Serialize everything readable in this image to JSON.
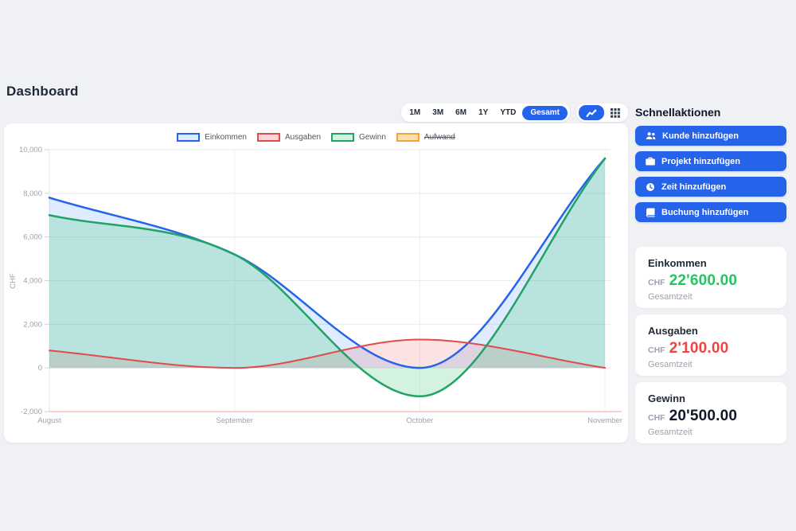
{
  "page": {
    "title": "Dashboard"
  },
  "toolbar": {
    "ranges": [
      {
        "label": "1M",
        "active": false
      },
      {
        "label": "3M",
        "active": false
      },
      {
        "label": "6M",
        "active": false
      },
      {
        "label": "1Y",
        "active": false
      },
      {
        "label": "YTD",
        "active": false
      },
      {
        "label": "Gesamt",
        "active": true
      }
    ],
    "views": [
      {
        "icon": "chart-line-icon",
        "active": true
      },
      {
        "icon": "grid-icon",
        "active": false
      }
    ],
    "accent_color": "#2563eb"
  },
  "chart_data": {
    "type": "area",
    "x": [
      "August",
      "September",
      "October",
      "November"
    ],
    "series": [
      {
        "name": "Einkommen",
        "values": [
          7800,
          5200,
          0,
          9600
        ],
        "color": "#2563eb",
        "fill": "rgba(59,130,246,0.16)",
        "legend_fill": "#dbeafe",
        "hidden": false
      },
      {
        "name": "Ausgaben",
        "values": [
          800,
          0,
          1300,
          0
        ],
        "color": "#df4c4c",
        "fill": "rgba(230,69,69,0.15)",
        "legend_fill": "#fbd7d7",
        "hidden": false
      },
      {
        "name": "Gewinn",
        "values": [
          7000,
          5200,
          -1300,
          9600
        ],
        "color": "#21a366",
        "fill": "rgba(34,197,94,0.20)",
        "legend_fill": "#d3f3df",
        "hidden": false
      },
      {
        "name": "Aufwand",
        "values": [],
        "color": "#f2a33c",
        "fill": "rgba(242,163,60,0.18)",
        "legend_fill": "#fbdfae",
        "hidden": true
      }
    ],
    "xlabel": "",
    "ylabel": "CHF",
    "ylim": [
      -2000,
      10000
    ],
    "yticks": [
      {
        "value": 10000,
        "label": "10,000"
      },
      {
        "value": 8000,
        "label": "8,000"
      },
      {
        "value": 6000,
        "label": "6,000"
      },
      {
        "value": 4000,
        "label": "4,000"
      },
      {
        "value": 2000,
        "label": "2,000"
      },
      {
        "value": 0,
        "label": "0"
      },
      {
        "value": -2000,
        "label": "-2,000"
      }
    ],
    "legend_position": "top",
    "grid": true,
    "baseline_color": "#f3b5ae",
    "interpolation": "monotone"
  },
  "quick_actions": {
    "heading": "Schnellaktionen",
    "buttons": [
      {
        "label": "Kunde hinzufügen",
        "icon": "users-icon"
      },
      {
        "label": "Projekt hinzufügen",
        "icon": "briefcase-icon"
      },
      {
        "label": "Zeit hinzufügen",
        "icon": "clock-icon"
      },
      {
        "label": "Buchung hinzufügen",
        "icon": "book-icon"
      }
    ]
  },
  "stats": [
    {
      "label": "Einkommen",
      "currency": "CHF",
      "value": "22'600.00",
      "caption": "Gesamtzeit",
      "color": "#22c55e"
    },
    {
      "label": "Ausgaben",
      "currency": "CHF",
      "value": "2'100.00",
      "caption": "Gesamtzeit",
      "color": "#ef4444"
    },
    {
      "label": "Gewinn",
      "currency": "CHF",
      "value": "20'500.00",
      "caption": "Gesamtzeit",
      "color": "#111827"
    }
  ]
}
